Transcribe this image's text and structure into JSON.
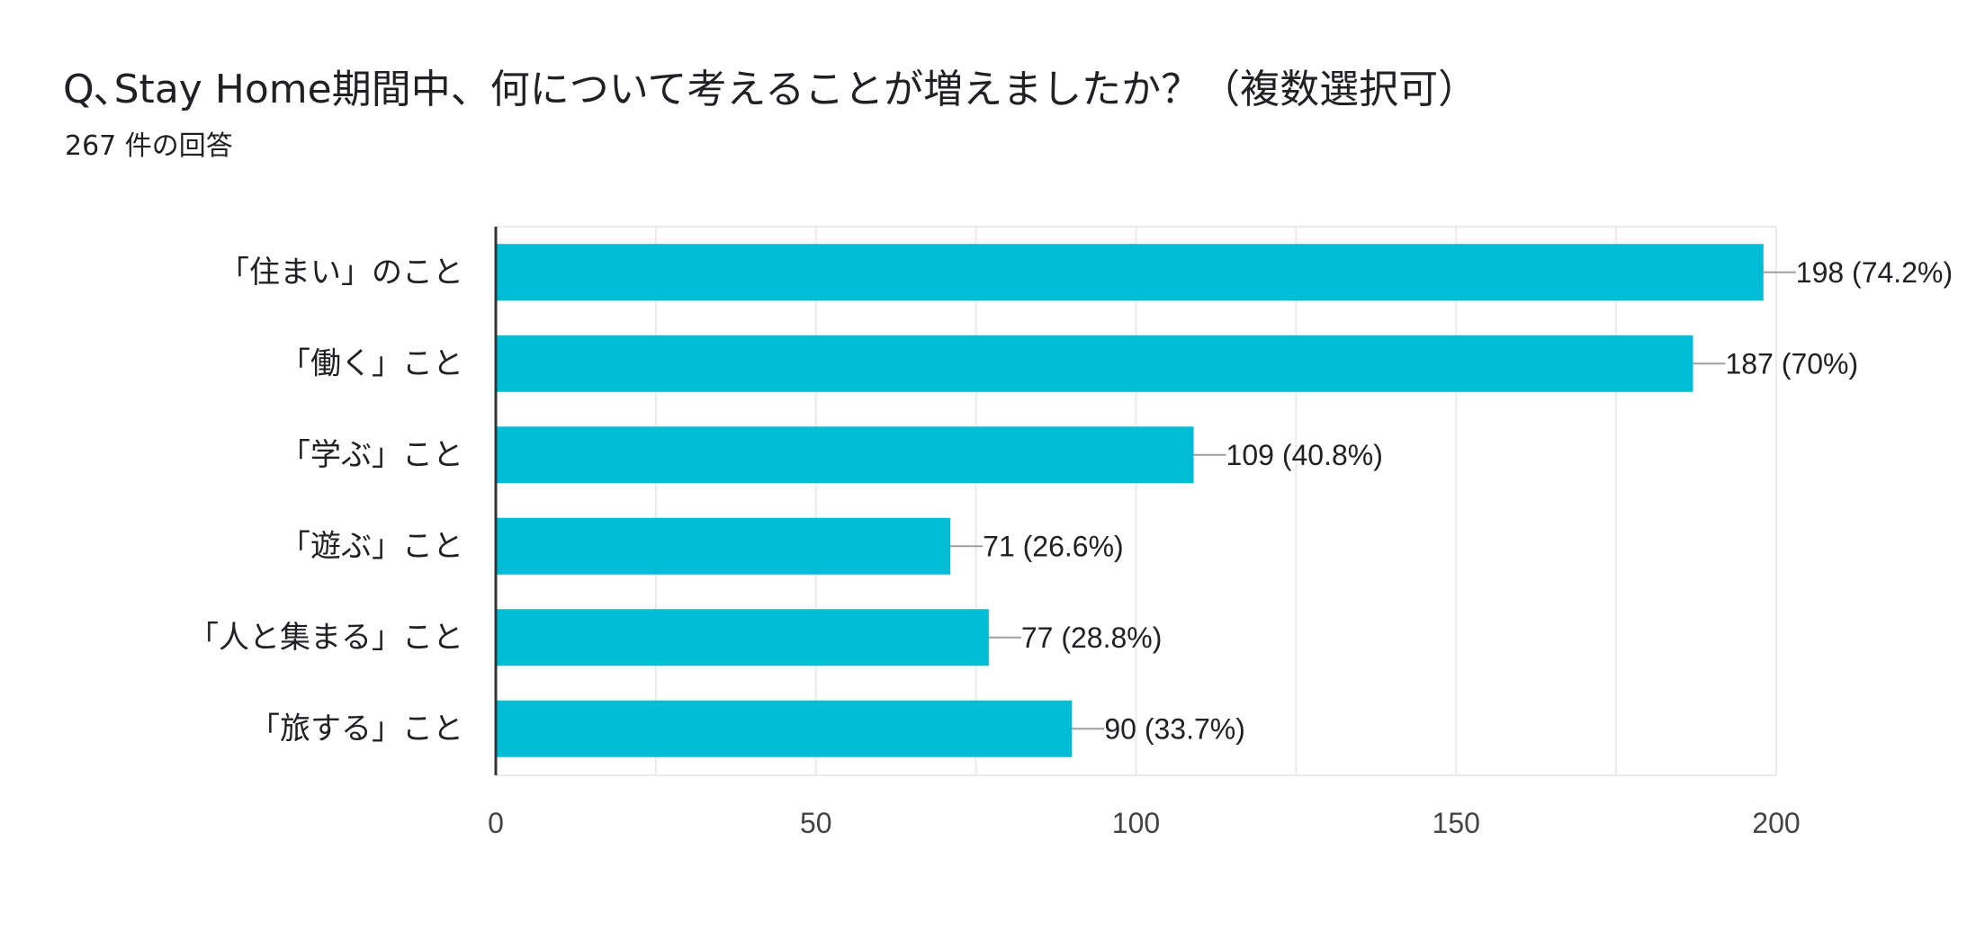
{
  "header": {
    "title": "Q､Stay Home期間中、何について考えることが増えましたか？（複数選択可）",
    "subtitle": "267 件の回答"
  },
  "colors": {
    "bar": "#00BCD4",
    "grid": "#EBEBEB",
    "axis": "#333333",
    "leader": "#9E9E9E"
  },
  "chart_data": {
    "type": "bar",
    "orientation": "horizontal",
    "categories": [
      "「住まい」のこと",
      "「働く」こと",
      "「学ぶ」こと",
      "「遊ぶ」こと",
      "「人と集まる」こと",
      "「旅する」こと"
    ],
    "values": [
      198,
      187,
      109,
      71,
      77,
      90
    ],
    "data_labels": [
      "198 (74.2%)",
      "187 (70%)",
      "109 (40.8%)",
      "71 (26.6%)",
      "77 (28.8%)",
      "90 (33.7%)"
    ],
    "xlim": [
      0,
      200
    ],
    "xticks": [
      0,
      50,
      100,
      150,
      200
    ],
    "grid": true
  }
}
